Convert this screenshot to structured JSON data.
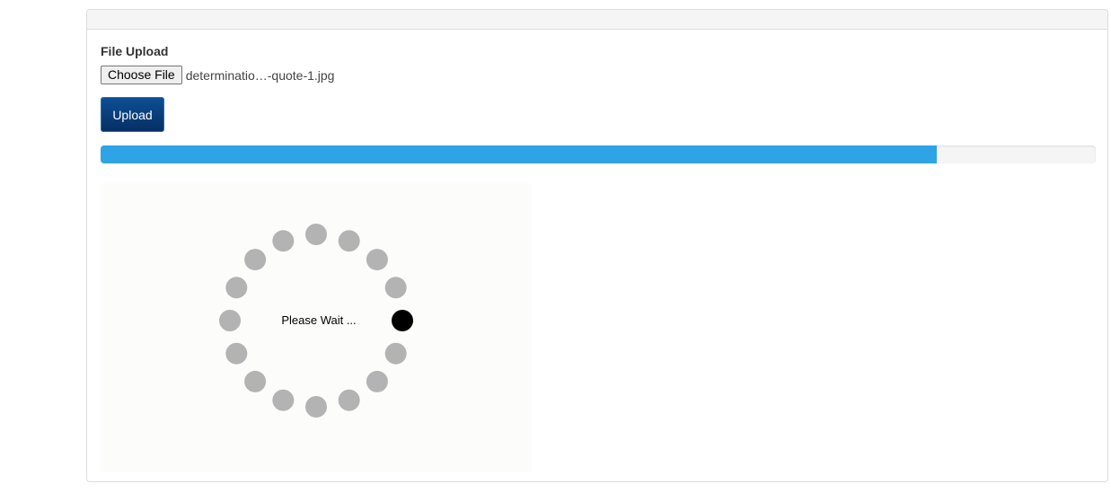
{
  "upload_form": {
    "field_label": "File Upload",
    "choose_file_label": "Choose File",
    "selected_file_name": "determinatio…-quote-1.jpg",
    "upload_button_label": "Upload"
  },
  "progress": {
    "fraction": 0.84,
    "fill_color": "#2ea3e6"
  },
  "spinner": {
    "message": "Please Wait ...",
    "dot_count": 16,
    "active_dot_index": 4,
    "dot_color": "#b3b3b3",
    "active_dot_color": "#000000"
  }
}
